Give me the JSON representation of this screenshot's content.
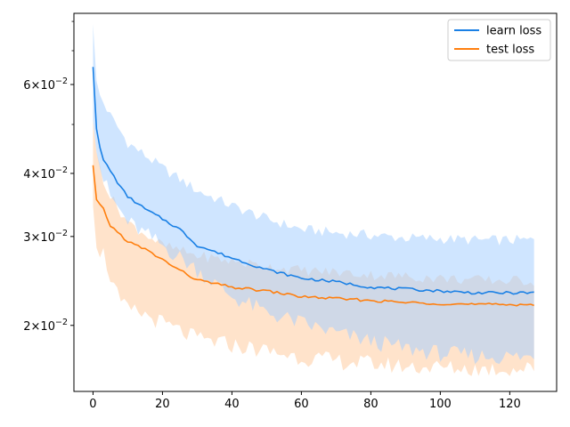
{
  "chart_data": {
    "type": "line",
    "title": "",
    "xlabel": "",
    "ylabel": "",
    "y_scale": "log",
    "xlim": [
      -5.5,
      133.5
    ],
    "ylim": [
      0.0148,
      0.083
    ],
    "grid": false,
    "legend_position": "upper-right",
    "x_ticks": [
      0,
      20,
      40,
      60,
      80,
      100,
      120
    ],
    "x_tick_labels": [
      "0",
      "20",
      "40",
      "60",
      "80",
      "100",
      "120"
    ],
    "y_major_ticks": [
      0.02,
      0.03,
      0.04,
      0.06
    ],
    "y_tick_labels": [
      {
        "mantissa": "2",
        "base": "10",
        "exponent": "−2"
      },
      {
        "mantissa": "3",
        "base": "10",
        "exponent": "−2"
      },
      {
        "mantissa": "4",
        "base": "10",
        "exponent": "−2"
      },
      {
        "mantissa": "6",
        "base": "10",
        "exponent": "−2"
      }
    ],
    "x_range": [
      0,
      127
    ],
    "series": [
      {
        "name": "learn loss",
        "color": "#1a80e5",
        "band_color": "#a8d0ff",
        "mean_keypoints": [
          [
            0,
            0.065
          ],
          [
            1,
            0.049
          ],
          [
            2,
            0.045
          ],
          [
            3,
            0.0425
          ],
          [
            5,
            0.0405
          ],
          [
            8,
            0.0375
          ],
          [
            10,
            0.036
          ],
          [
            15,
            0.034
          ],
          [
            20,
            0.0325
          ],
          [
            25,
            0.031
          ],
          [
            30,
            0.0288
          ],
          [
            40,
            0.0272
          ],
          [
            50,
            0.0258
          ],
          [
            60,
            0.0248
          ],
          [
            70,
            0.0244
          ],
          [
            80,
            0.0238
          ],
          [
            90,
            0.0236
          ],
          [
            100,
            0.0234
          ],
          [
            110,
            0.0232
          ],
          [
            127,
            0.0232
          ]
        ],
        "upper_keypoints": [
          [
            0,
            0.079
          ],
          [
            1,
            0.061
          ],
          [
            2,
            0.057
          ],
          [
            5,
            0.052
          ],
          [
            10,
            0.046
          ],
          [
            20,
            0.041
          ],
          [
            30,
            0.037
          ],
          [
            40,
            0.0345
          ],
          [
            50,
            0.0325
          ],
          [
            60,
            0.031
          ],
          [
            70,
            0.0305
          ],
          [
            80,
            0.0302
          ],
          [
            90,
            0.0298
          ],
          [
            100,
            0.0297
          ],
          [
            110,
            0.0295
          ],
          [
            127,
            0.0295
          ]
        ],
        "lower_keypoints": [
          [
            0,
            0.051
          ],
          [
            1,
            0.044
          ],
          [
            3,
            0.039
          ],
          [
            5,
            0.036
          ],
          [
            10,
            0.032
          ],
          [
            20,
            0.0288
          ],
          [
            30,
            0.0258
          ],
          [
            40,
            0.0228
          ],
          [
            50,
            0.0212
          ],
          [
            60,
            0.0202
          ],
          [
            70,
            0.0193
          ],
          [
            80,
            0.0186
          ],
          [
            90,
            0.018
          ],
          [
            100,
            0.0176
          ],
          [
            110,
            0.0174
          ],
          [
            127,
            0.0173
          ]
        ]
      },
      {
        "name": "test loss",
        "color": "#ff7f0e",
        "band_color": "#ffd0a8",
        "mean_keypoints": [
          [
            0,
            0.0415
          ],
          [
            1,
            0.0355
          ],
          [
            3,
            0.034
          ],
          [
            5,
            0.0315
          ],
          [
            8,
            0.0302
          ],
          [
            10,
            0.0293
          ],
          [
            15,
            0.0283
          ],
          [
            20,
            0.027
          ],
          [
            25,
            0.0257
          ],
          [
            30,
            0.0246
          ],
          [
            40,
            0.0238
          ],
          [
            50,
            0.0234
          ],
          [
            60,
            0.0228
          ],
          [
            70,
            0.0226
          ],
          [
            80,
            0.0224
          ],
          [
            90,
            0.0222
          ],
          [
            100,
            0.0221
          ],
          [
            110,
            0.022
          ],
          [
            127,
            0.022
          ]
        ],
        "upper_keypoints": [
          [
            0,
            0.051
          ],
          [
            1,
            0.044
          ],
          [
            3,
            0.039
          ],
          [
            5,
            0.036
          ],
          [
            10,
            0.032
          ],
          [
            20,
            0.0288
          ],
          [
            30,
            0.0275
          ],
          [
            40,
            0.0268
          ],
          [
            50,
            0.0262
          ],
          [
            60,
            0.0257
          ],
          [
            70,
            0.0255
          ],
          [
            80,
            0.0252
          ],
          [
            90,
            0.025
          ],
          [
            100,
            0.0248
          ],
          [
            110,
            0.0246
          ],
          [
            127,
            0.0245
          ]
        ],
        "lower_keypoints": [
          [
            0,
            0.0345
          ],
          [
            1,
            0.0285
          ],
          [
            3,
            0.0278
          ],
          [
            5,
            0.025
          ],
          [
            8,
            0.022
          ],
          [
            10,
            0.0215
          ],
          [
            15,
            0.021
          ],
          [
            20,
            0.0202
          ],
          [
            25,
            0.0195
          ],
          [
            30,
            0.0188
          ],
          [
            40,
            0.0183
          ],
          [
            50,
            0.0178
          ],
          [
            60,
            0.0173
          ],
          [
            70,
            0.017
          ],
          [
            80,
            0.0168
          ],
          [
            90,
            0.0166
          ],
          [
            100,
            0.0165
          ],
          [
            110,
            0.0164
          ],
          [
            127,
            0.0164
          ]
        ]
      }
    ]
  }
}
